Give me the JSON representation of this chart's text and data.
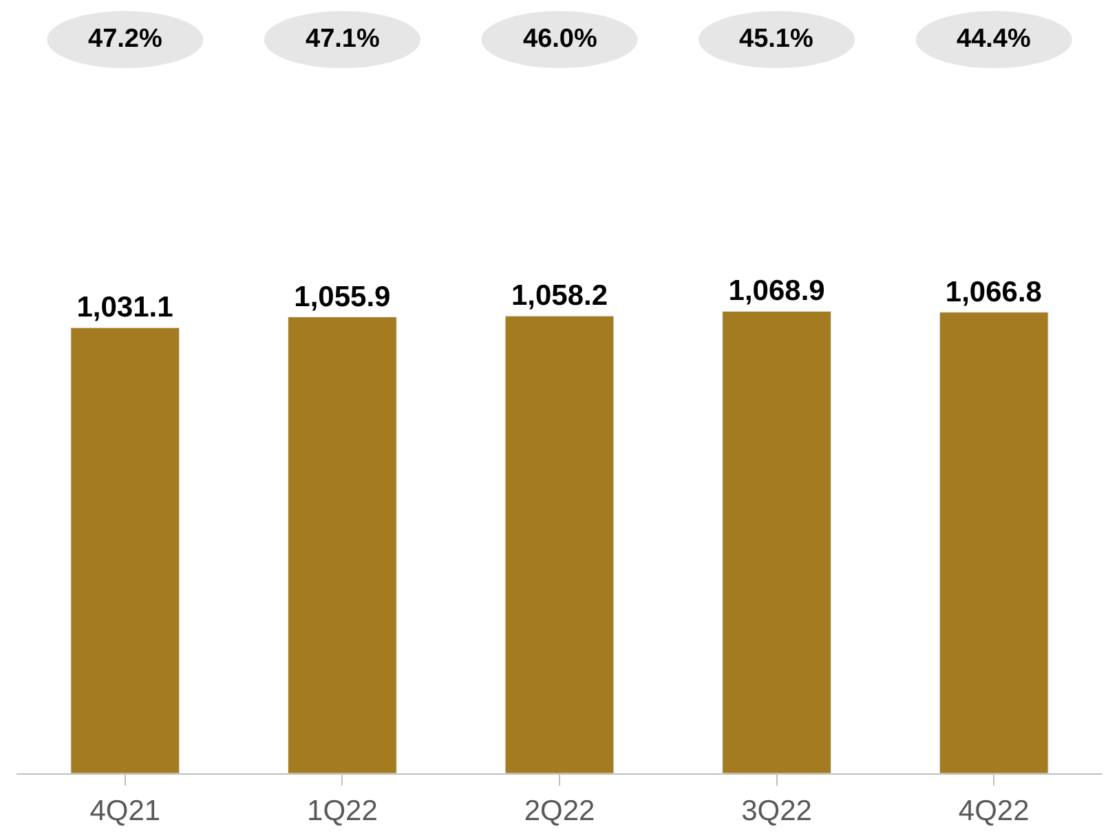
{
  "chart_data": {
    "type": "bar",
    "categories": [
      "4Q21",
      "1Q22",
      "2Q22",
      "3Q22",
      "4Q22"
    ],
    "values": [
      1031.1,
      1055.9,
      1058.2,
      1068.9,
      1066.8
    ],
    "value_labels": [
      "1,031.1",
      "1,055.9",
      "1,058.2",
      "1,068.9",
      "1,066.8"
    ],
    "color": "#a37b20",
    "annotations": [
      "47.2%",
      "47.1%",
      "46.0%",
      "45.1%",
      "44.4%"
    ],
    "tick_labels": "x"
  }
}
